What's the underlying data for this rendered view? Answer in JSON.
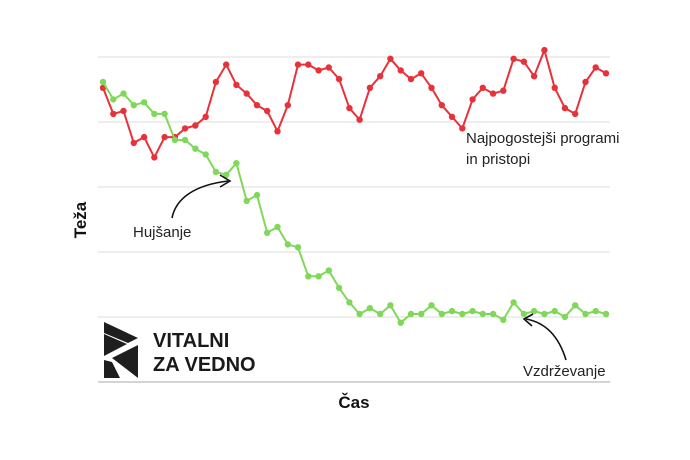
{
  "chart_data": {
    "type": "line",
    "xlabel": "Čas",
    "ylabel": "Teža",
    "grid": true,
    "ylim": [
      0,
      100
    ],
    "x": [
      0,
      1,
      2,
      3,
      4,
      5,
      6,
      7,
      8,
      9,
      10,
      11,
      12,
      13,
      14,
      15,
      16,
      17,
      18,
      19,
      20,
      21,
      22,
      23,
      24,
      25,
      26,
      27,
      28,
      29,
      30,
      31,
      32,
      33,
      34,
      35,
      36,
      37,
      38,
      39,
      40,
      41,
      42,
      43,
      44,
      45,
      46,
      47,
      48,
      49
    ],
    "series": [
      {
        "color": "#e8323a",
        "values": [
          78,
          69,
          70,
          59,
          61,
          54,
          61,
          61,
          64,
          65,
          68,
          80,
          86,
          79,
          76,
          72,
          70,
          63,
          72,
          86,
          86,
          84,
          85,
          81,
          71,
          67,
          78,
          82,
          88,
          84,
          81,
          83,
          78,
          72,
          68,
          64,
          74,
          78,
          76,
          77,
          88,
          87,
          82,
          91,
          78,
          71,
          69,
          80,
          85,
          83
        ]
      },
      {
        "color": "#7fd85a",
        "values": [
          80,
          74,
          76,
          72,
          73,
          69,
          69,
          60,
          60,
          57,
          55,
          49,
          48,
          52,
          39,
          41,
          28,
          30,
          24,
          23,
          13,
          13,
          15,
          9,
          4,
          0,
          2,
          0,
          3,
          -3,
          0,
          0,
          3,
          0,
          1,
          0,
          1,
          0,
          0,
          -2,
          4,
          0,
          1,
          0,
          1,
          -1,
          3,
          0,
          1,
          0
        ]
      }
    ],
    "annotations": [
      {
        "text": "Hujšanje"
      },
      {
        "text": "Najpogostejši programi",
        "text2": "in pristopi"
      },
      {
        "text": "Vzdrževanje"
      }
    ]
  },
  "logo": {
    "line1": "VITALNI",
    "line2": "ZA VEDNO"
  }
}
